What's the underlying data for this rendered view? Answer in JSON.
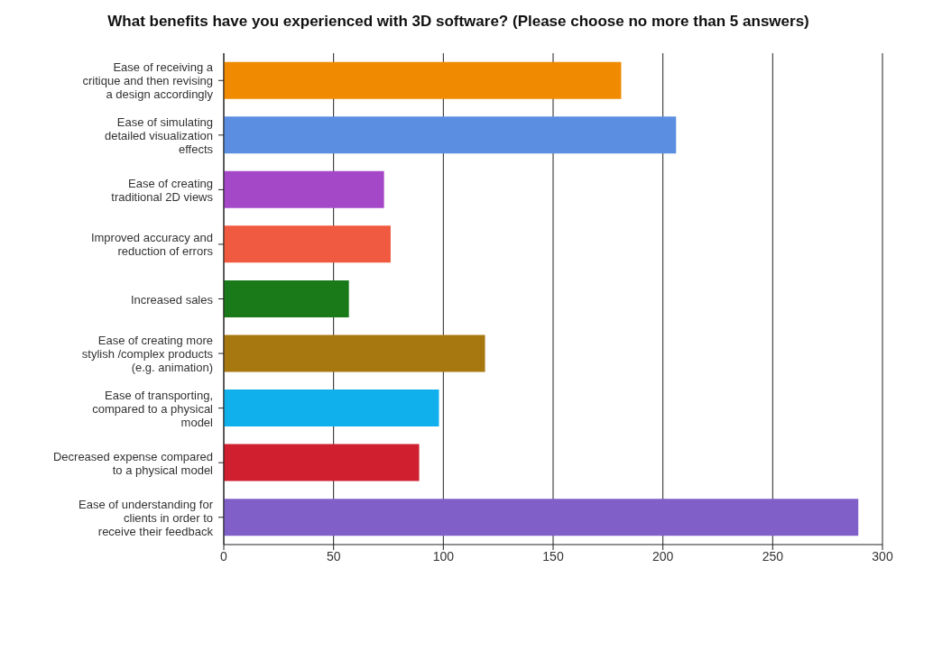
{
  "chart_data": {
    "type": "bar",
    "orientation": "horizontal",
    "title": "What benefits have you experienced with 3D software? (Please choose no more than 5 answers)",
    "categories": [
      "Ease of receiving a critique and then revising a design accordingly",
      "Ease of simulating detailed visualization effects",
      "Ease of creating traditional 2D views",
      "Improved accuracy and reduction of errors",
      "Increased sales",
      "Ease of creating more stylish /complex products (e.g. animation)",
      "Ease of transporting, compared to a physical model",
      "Decreased expense compared to a physical model",
      "Ease of understanding for clients in order to receive their feedback"
    ],
    "values": [
      181,
      206,
      73,
      76,
      57,
      119,
      98,
      89,
      289
    ],
    "colors": [
      "#f08a00",
      "#5b8ee0",
      "#a548c8",
      "#f05a40",
      "#1a7a1a",
      "#a87810",
      "#10b0ec",
      "#d02030",
      "#8060c8"
    ],
    "xlim": [
      0,
      300
    ],
    "xticks": [
      0,
      50,
      100,
      150,
      200,
      250,
      300
    ],
    "grid": "x",
    "legend": false
  }
}
